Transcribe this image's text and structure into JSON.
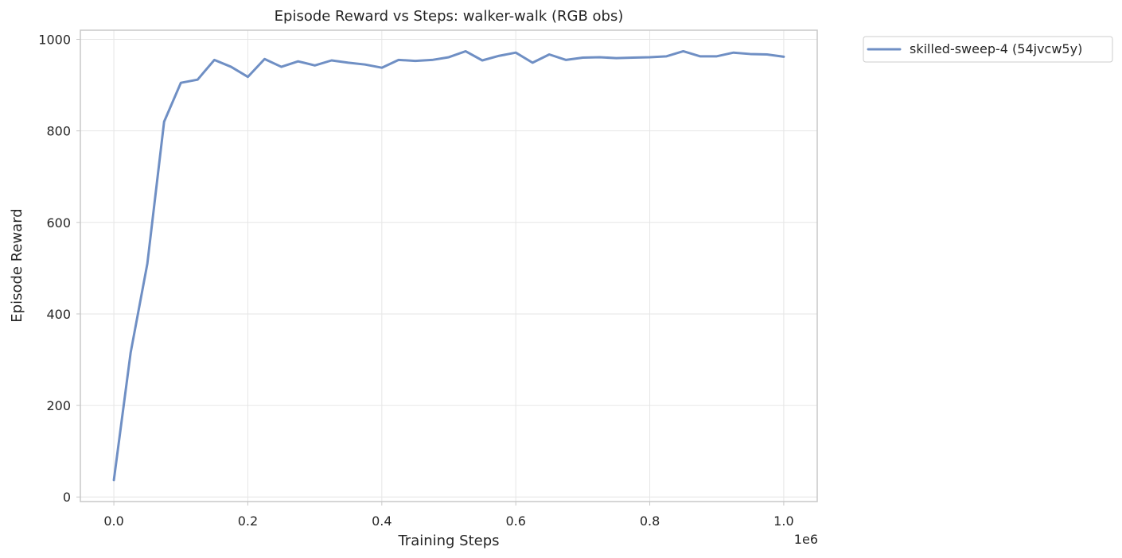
{
  "chart_data": {
    "type": "line",
    "title": "Episode Reward vs Steps: walker-walk (RGB obs)",
    "xlabel": "Training Steps",
    "ylabel": "Episode Reward",
    "x_offset_label": "1e6",
    "xlim": [
      -0.05,
      1.05
    ],
    "ylim": [
      -10,
      1020
    ],
    "xticks": [
      0.0,
      0.2,
      0.4,
      0.6,
      0.8,
      1.0
    ],
    "xtick_labels": [
      "0.0",
      "0.2",
      "0.4",
      "0.6",
      "0.8",
      "1.0"
    ],
    "yticks": [
      0,
      200,
      400,
      600,
      800,
      1000
    ],
    "ytick_labels": [
      "0",
      "200",
      "400",
      "600",
      "800",
      "1000"
    ],
    "grid": true,
    "legend_position": "outside-top-right",
    "series": [
      {
        "name": "skilled-sweep-4 (54jvcw5y)",
        "color": "#6f8fc4",
        "x": [
          0.0,
          0.025,
          0.05,
          0.075,
          0.1,
          0.125,
          0.15,
          0.175,
          0.2,
          0.225,
          0.25,
          0.275,
          0.3,
          0.325,
          0.35,
          0.375,
          0.4,
          0.425,
          0.45,
          0.475,
          0.5,
          0.525,
          0.55,
          0.575,
          0.6,
          0.625,
          0.65,
          0.675,
          0.7,
          0.725,
          0.75,
          0.775,
          0.8,
          0.825,
          0.85,
          0.875,
          0.9,
          0.925,
          0.95,
          0.975,
          1.0
        ],
        "y": [
          37,
          315,
          510,
          820,
          905,
          912,
          955,
          940,
          918,
          957,
          940,
          952,
          943,
          954,
          949,
          945,
          938,
          955,
          953,
          955,
          961,
          974,
          954,
          964,
          971,
          949,
          967,
          955,
          960,
          961,
          959,
          960,
          961,
          963,
          974,
          963,
          963,
          971,
          968,
          967,
          962
        ]
      }
    ]
  }
}
